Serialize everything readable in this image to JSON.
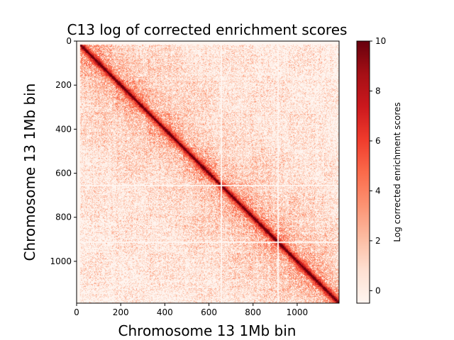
{
  "chart_data": {
    "type": "heatmap",
    "title": "C13 log of corrected enrichment scores",
    "xlabel": "Chromosome 13 1Mb bin",
    "ylabel": "Chromosome 13 1Mb bin",
    "colorbar_label": "Log corrected enrichment scores",
    "x_range": [
      0,
      1190
    ],
    "y_range": [
      0,
      1190
    ],
    "y_inverted": true,
    "x_ticks": [
      "0",
      "200",
      "400",
      "600",
      "800",
      "1000"
    ],
    "x_tick_values": [
      0,
      200,
      400,
      600,
      800,
      1000
    ],
    "y_ticks": [
      "0",
      "200",
      "400",
      "600",
      "800",
      "1000"
    ],
    "y_tick_values": [
      0,
      200,
      400,
      600,
      800,
      1000
    ],
    "colorbar_range": [
      -0.5,
      10
    ],
    "colorbar_ticks": [
      "0",
      "2",
      "4",
      "6",
      "8",
      "10"
    ],
    "colorbar_tick_values": [
      0,
      2,
      4,
      6,
      8,
      10
    ],
    "colormap": "Reds",
    "colormap_stops": [
      "#fff5f0",
      "#fee0d2",
      "#fcbba1",
      "#fc9272",
      "#fb6a4a",
      "#ef3b2c",
      "#cb181d",
      "#a50f15",
      "#67000d"
    ],
    "matrix_description": "Symmetric contact map with strongest values along the main diagonal, decaying with distance; empty stripes near bins 650 and 910; sparse region near bins 0-20"
  }
}
